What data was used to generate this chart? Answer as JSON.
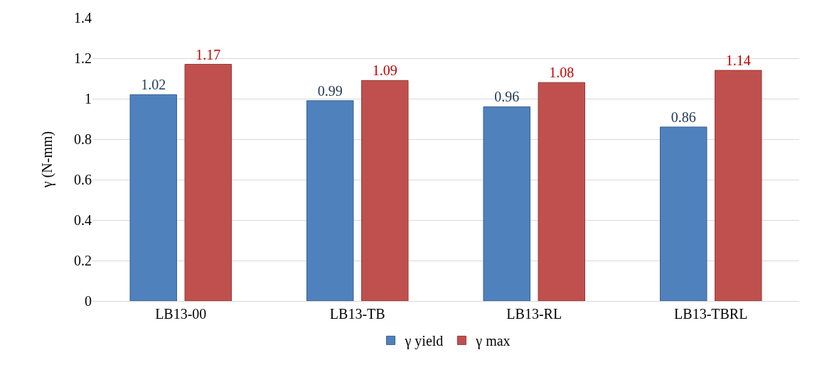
{
  "chart_data": {
    "type": "bar",
    "ylabel": "γ (N-mm)",
    "categories": [
      "LB13-00",
      "LB13-TB",
      "LB13-RL",
      "LB13-TBRL"
    ],
    "series": [
      {
        "name": "γ yield",
        "color": "#4f81bd",
        "values": [
          1.02,
          0.99,
          0.96,
          0.86
        ]
      },
      {
        "name": "γ max",
        "color": "#c0504d",
        "values": [
          1.17,
          1.09,
          1.08,
          1.14
        ]
      }
    ],
    "ylim": [
      0,
      1.4
    ],
    "yticks": [
      0,
      0.2,
      0.4,
      0.6,
      0.8,
      1,
      1.2,
      1.4
    ],
    "grid": "y",
    "legend": "bottom",
    "data_labels": true
  }
}
